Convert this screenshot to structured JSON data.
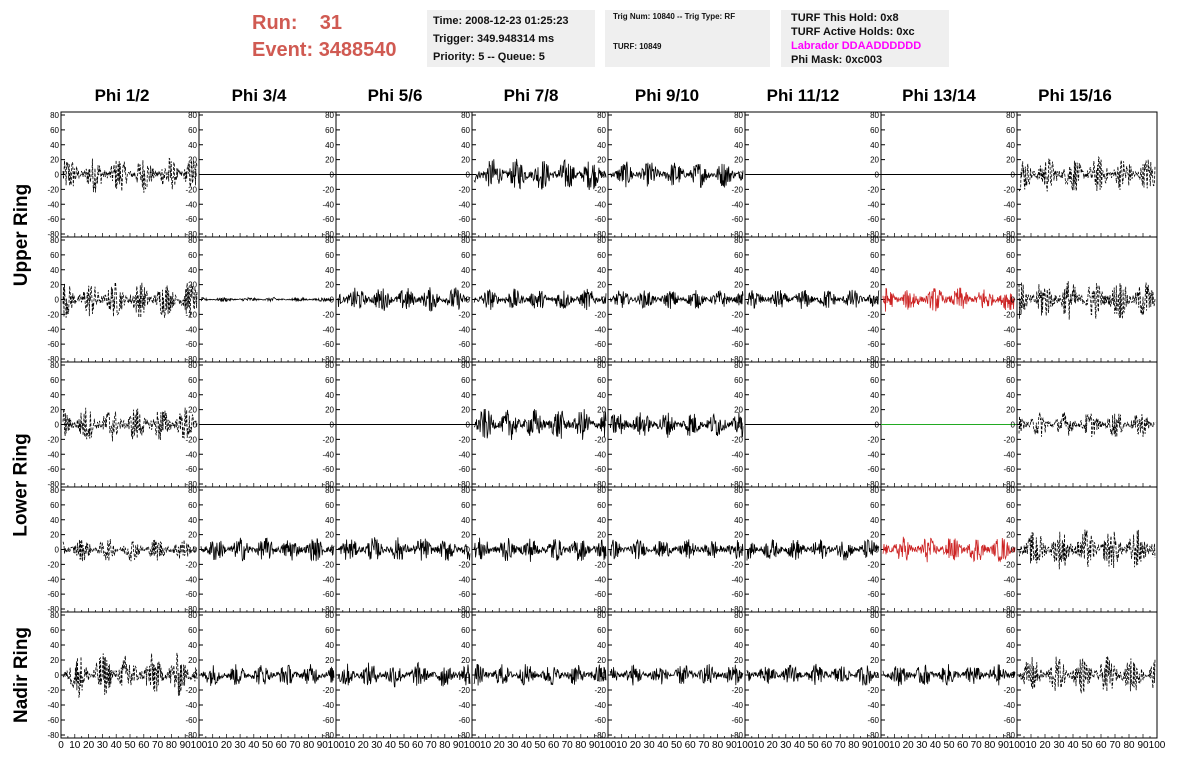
{
  "header": {
    "run_label": "Run:",
    "run_value": "31",
    "event_label": "Event:",
    "event_value": "3488540"
  },
  "info_time": {
    "time": "Time: 2008-12-23 01:25:23",
    "trigger": "Trigger: 349.948314 ms",
    "priority": "Priority: 5 -- Queue: 5"
  },
  "info_trig": {
    "trig": "Trig Num: 10840 -- Trig Type: RF",
    "turf": "TURF: 10849"
  },
  "info_turf": {
    "hold": "TURF This Hold: 0x8",
    "active": "TURF Active Holds: 0xc",
    "labrador": "Labrador DDAADDDDDD",
    "phimask": "Phi Mask: 0xc003"
  },
  "colors": {
    "header_red": "#d05a52",
    "labrador_magenta": "#ff00ff",
    "trace_black": "#000000",
    "trace_red": "#cc2222",
    "trace_green": "#22aa22",
    "info_bg": "#efefef"
  },
  "columns": [
    "Phi 1/2",
    "Phi 3/4",
    "Phi 5/6",
    "Phi 7/8",
    "Phi 9/10",
    "Phi 11/12",
    "Phi 13/14",
    "Phi 15/16"
  ],
  "rings": [
    "Upper Ring",
    "Lower Ring",
    "Nadir Ring"
  ],
  "y_ticks": [
    80,
    60,
    40,
    20,
    0,
    -20,
    -40,
    -60,
    -80
  ],
  "x_ticks": [
    0,
    10,
    20,
    30,
    40,
    50,
    60,
    70,
    80,
    90,
    100
  ],
  "traces": [
    [
      {
        "s": "dash",
        "a": 25
      },
      {
        "s": "flat"
      },
      {
        "s": "flat"
      },
      {
        "s": "solid",
        "a": 22
      },
      {
        "s": "solid",
        "a": 18
      },
      {
        "s": "flat"
      },
      {
        "s": "flat"
      },
      {
        "s": "dash",
        "a": 25
      }
    ],
    [
      {
        "s": "dash",
        "a": 25
      },
      {
        "s": "solid",
        "a": 3
      },
      {
        "s": "solid",
        "a": 17
      },
      {
        "s": "solid",
        "a": 15
      },
      {
        "s": "solid",
        "a": 13
      },
      {
        "s": "solid",
        "a": 14
      },
      {
        "s": "red",
        "a": 17
      },
      {
        "s": "dash",
        "a": 28
      }
    ],
    [
      {
        "s": "dash",
        "a": 25
      },
      {
        "s": "flat"
      },
      {
        "s": "flat"
      },
      {
        "s": "solid",
        "a": 22
      },
      {
        "s": "solid",
        "a": 18
      },
      {
        "s": "flat"
      },
      {
        "s": "green"
      },
      {
        "s": "dash",
        "a": 18
      }
    ],
    [
      {
        "s": "dash",
        "a": 16
      },
      {
        "s": "solid",
        "a": 17
      },
      {
        "s": "solid",
        "a": 17
      },
      {
        "s": "solid",
        "a": 17
      },
      {
        "s": "solid",
        "a": 14
      },
      {
        "s": "solid",
        "a": 15
      },
      {
        "s": "red",
        "a": 18
      },
      {
        "s": "dash",
        "a": 28
      }
    ],
    [
      {
        "s": "dash",
        "a": 30
      },
      {
        "s": "solid",
        "a": 15
      },
      {
        "s": "solid",
        "a": 17
      },
      {
        "s": "solid",
        "a": 15
      },
      {
        "s": "solid",
        "a": 15
      },
      {
        "s": "solid",
        "a": 15
      },
      {
        "s": "solid",
        "a": 15
      },
      {
        "s": "dash",
        "a": 25
      }
    ]
  ]
}
